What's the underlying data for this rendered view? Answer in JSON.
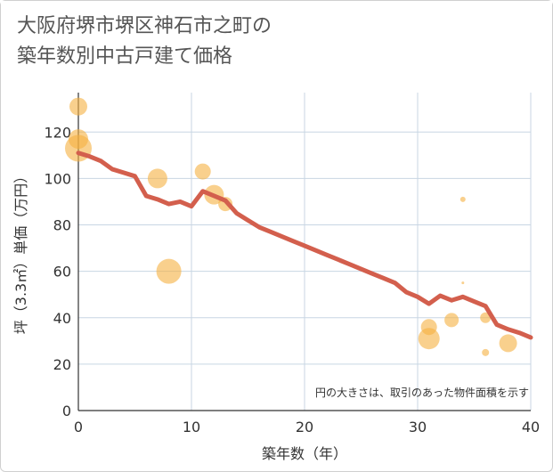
{
  "title": "大阪府堺市堺区神石市之町の\n築年数別中古戸建て価格",
  "chart_data": {
    "type": "scatter",
    "xlabel": "築年数（年）",
    "ylabel": "坪（3.3㎡）単価（万円）",
    "xlim": [
      0,
      40
    ],
    "ylim": [
      0,
      137
    ],
    "xticks": [
      0,
      10,
      20,
      30,
      40
    ],
    "yticks": [
      0,
      20,
      40,
      60,
      80,
      100,
      120
    ],
    "grid": true,
    "note": "円の大きさは、取引のあった物件面積を示す",
    "colors": {
      "bubble": "#f5b041",
      "line": "#d35f4d"
    },
    "bubbles": [
      {
        "x": 0,
        "y": 131,
        "r": 10
      },
      {
        "x": 0,
        "y": 117,
        "r": 11
      },
      {
        "x": 0,
        "y": 113,
        "r": 15
      },
      {
        "x": 7,
        "y": 100,
        "r": 11
      },
      {
        "x": 8,
        "y": 60,
        "r": 14
      },
      {
        "x": 11,
        "y": 103,
        "r": 9
      },
      {
        "x": 12,
        "y": 93,
        "r": 11
      },
      {
        "x": 13,
        "y": 89,
        "r": 8
      },
      {
        "x": 31,
        "y": 36,
        "r": 9
      },
      {
        "x": 31,
        "y": 31,
        "r": 12
      },
      {
        "x": 33,
        "y": 39,
        "r": 8
      },
      {
        "x": 34,
        "y": 91,
        "r": 3
      },
      {
        "x": 34,
        "y": 55,
        "r": 1.5
      },
      {
        "x": 36,
        "y": 40,
        "r": 6
      },
      {
        "x": 36,
        "y": 25,
        "r": 4
      },
      {
        "x": 38,
        "y": 29,
        "r": 10
      }
    ],
    "trend": {
      "x": [
        0,
        1,
        2,
        3,
        4,
        5,
        6,
        7,
        8,
        9,
        10,
        11,
        12,
        13,
        14,
        15,
        16,
        17,
        18,
        19,
        20,
        21,
        22,
        23,
        24,
        25,
        26,
        27,
        28,
        29,
        30,
        31,
        32,
        33,
        34,
        35,
        36,
        37,
        38,
        39,
        40
      ],
      "y": [
        111,
        109.5,
        107.5,
        104,
        102.5,
        101,
        92.5,
        91,
        89,
        90,
        88,
        94.5,
        92.5,
        90.5,
        85,
        82,
        79,
        77,
        75,
        73,
        71,
        69,
        67,
        65,
        63,
        61,
        59,
        57,
        55,
        51,
        49,
        46,
        49.5,
        47.5,
        49,
        47,
        45,
        37,
        35,
        33.5,
        31.5
      ]
    }
  }
}
